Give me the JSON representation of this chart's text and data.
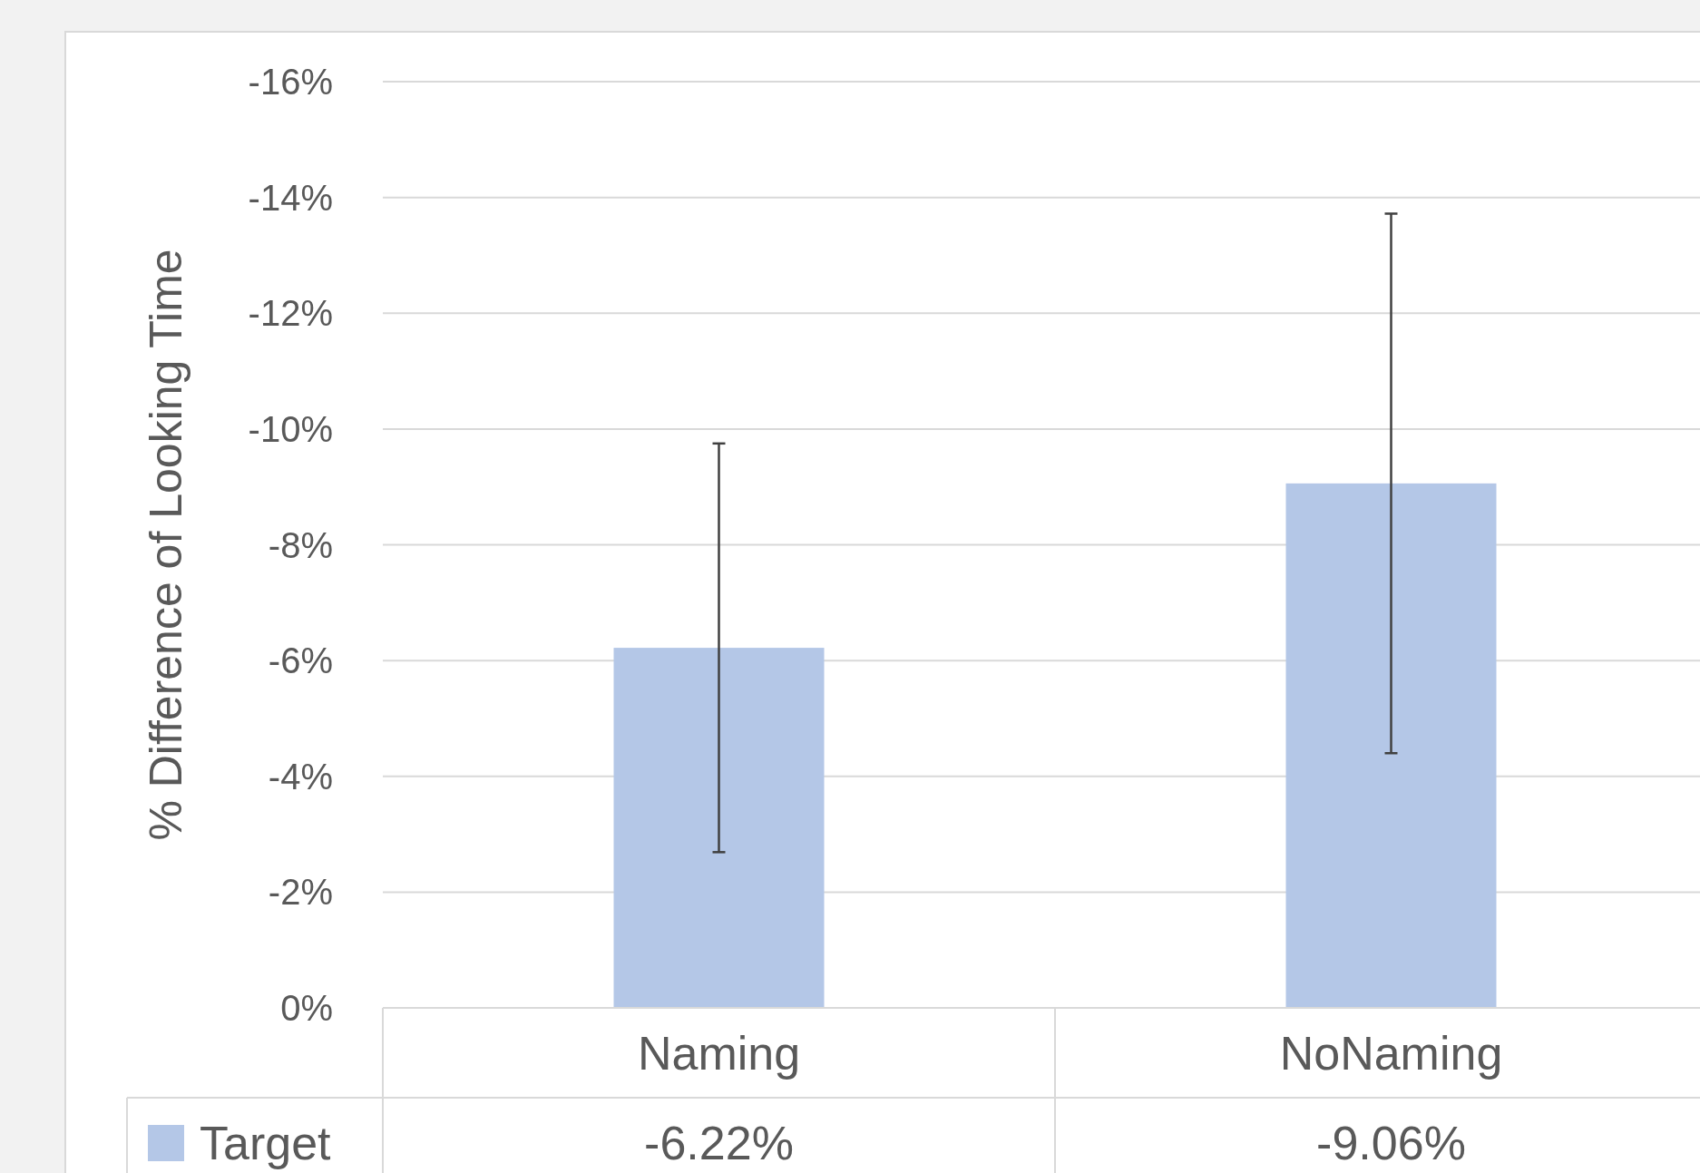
{
  "chart_data": {
    "type": "bar",
    "ylabel": "% Difference of Looking Time",
    "categories": [
      "Naming",
      "NoNaming"
    ],
    "series": [
      {
        "name": "Target",
        "color": "#b4c7e7",
        "values": [
          -6.22,
          -9.06
        ],
        "errors": [
          3.53,
          4.66
        ],
        "value_labels": [
          "-6.22%",
          "-9.06%"
        ]
      }
    ],
    "ylim": [
      0,
      -16
    ],
    "yticks": [
      {
        "value": 0,
        "label": "0%"
      },
      {
        "value": -2,
        "label": "-2%"
      },
      {
        "value": -4,
        "label": "-4%"
      },
      {
        "value": -6,
        "label": "-6%"
      },
      {
        "value": -8,
        "label": "-8%"
      },
      {
        "value": -10,
        "label": "-10%"
      },
      {
        "value": -12,
        "label": "-12%"
      },
      {
        "value": -14,
        "label": "-14%"
      },
      {
        "value": -16,
        "label": "-16%"
      }
    ],
    "grid": "y",
    "legend": "bottom"
  }
}
